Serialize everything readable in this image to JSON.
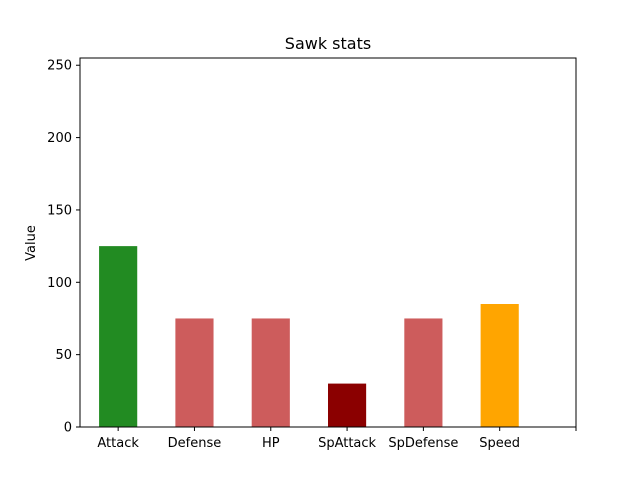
{
  "chart_data": {
    "type": "bar",
    "title": "Sawk stats",
    "xlabel": "",
    "ylabel": "Value",
    "categories": [
      "Attack",
      "Defense",
      "HP",
      "SpAttack",
      "SpDefense",
      "Speed"
    ],
    "values": [
      125,
      75,
      75,
      30,
      75,
      85
    ],
    "colors": [
      "#228b22",
      "#cd5c5c",
      "#cd5c5c",
      "#8b0000",
      "#cd5c5c",
      "#ffa500"
    ],
    "ylim": [
      0,
      255
    ],
    "yticks": [
      0,
      50,
      100,
      150,
      200,
      250
    ],
    "grid": false
  }
}
